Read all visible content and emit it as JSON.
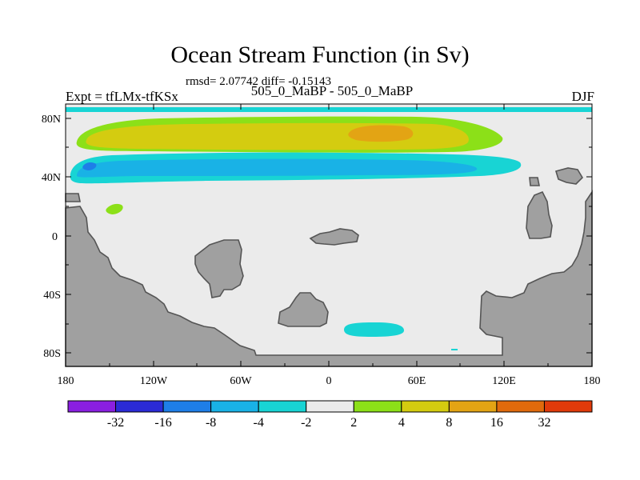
{
  "header": {
    "title": "Ocean Stream Function (in Sv)",
    "stats": "rmsd= 2.07742 diff= -0.15143",
    "left_label": "Expt = tfLMx-tfKSx",
    "center_label": "505_0_MaBP - 505_0_MaBP",
    "right_label": "DJF"
  },
  "axes": {
    "y_ticks": [
      "80N",
      "40N",
      "0",
      "40S",
      "80S"
    ],
    "x_ticks": [
      "180",
      "120W",
      "60W",
      "0",
      "60E",
      "120E",
      "180"
    ]
  },
  "colorbar": {
    "colors": [
      "#8a1fe0",
      "#2b2bd6",
      "#1e7ee8",
      "#19b2e6",
      "#18d4d4",
      "#ebebeb",
      "#8ce018",
      "#d4cc10",
      "#e3a414",
      "#e06a0c",
      "#e03a0a"
    ],
    "labels": [
      "-32",
      "-16",
      "-8",
      "-4",
      "-2",
      "2",
      "4",
      "8",
      "16",
      "32"
    ]
  },
  "legend_colors": {
    "land": "#a0a0a0",
    "ocean": "#ebebeb",
    "coast": "#555555"
  }
}
